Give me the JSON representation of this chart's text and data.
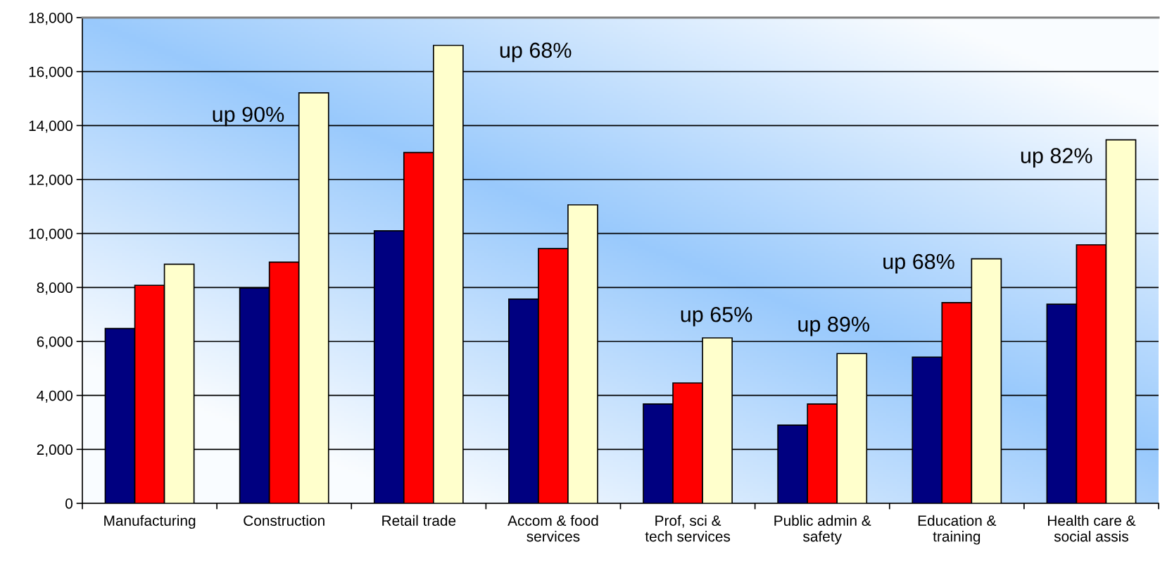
{
  "chart_data": {
    "type": "bar",
    "categories": [
      "Manufacturing",
      "Construction",
      "Retail trade",
      "Accom & food\nservices",
      "Prof, sci &\ntech services",
      "Public admin &\nsafety",
      "Education &\ntraining",
      "Health care &\nsocial assis"
    ],
    "series": [
      {
        "color": "#000080",
        "values": [
          6480,
          7980,
          10100,
          7570,
          3680,
          2900,
          5420,
          7380
        ]
      },
      {
        "color": "#ff0000",
        "values": [
          8080,
          8940,
          13000,
          9440,
          4460,
          3680,
          7440,
          9580
        ]
      },
      {
        "color": "#ffffcc",
        "values": [
          8860,
          15210,
          16970,
          11060,
          6130,
          5550,
          9060,
          13470
        ]
      }
    ],
    "ylim": [
      0,
      18000
    ],
    "yticks": [
      {
        "value": 0,
        "label": "0"
      },
      {
        "value": 2000,
        "label": "2,000"
      },
      {
        "value": 4000,
        "label": "4,000"
      },
      {
        "value": 6000,
        "label": "6,000"
      },
      {
        "value": 8000,
        "label": "8,000"
      },
      {
        "value": 10000,
        "label": "10,000"
      },
      {
        "value": 12000,
        "label": "12,000"
      },
      {
        "value": 14000,
        "label": "14,000"
      },
      {
        "value": 16000,
        "label": "16,000"
      },
      {
        "value": 18000,
        "label": "18,000"
      }
    ],
    "grid": "y",
    "legend": false,
    "annotations": [
      "up 90%",
      "up 68%",
      "up 65%",
      "up 89%",
      "up 68%",
      "up 82%"
    ]
  }
}
